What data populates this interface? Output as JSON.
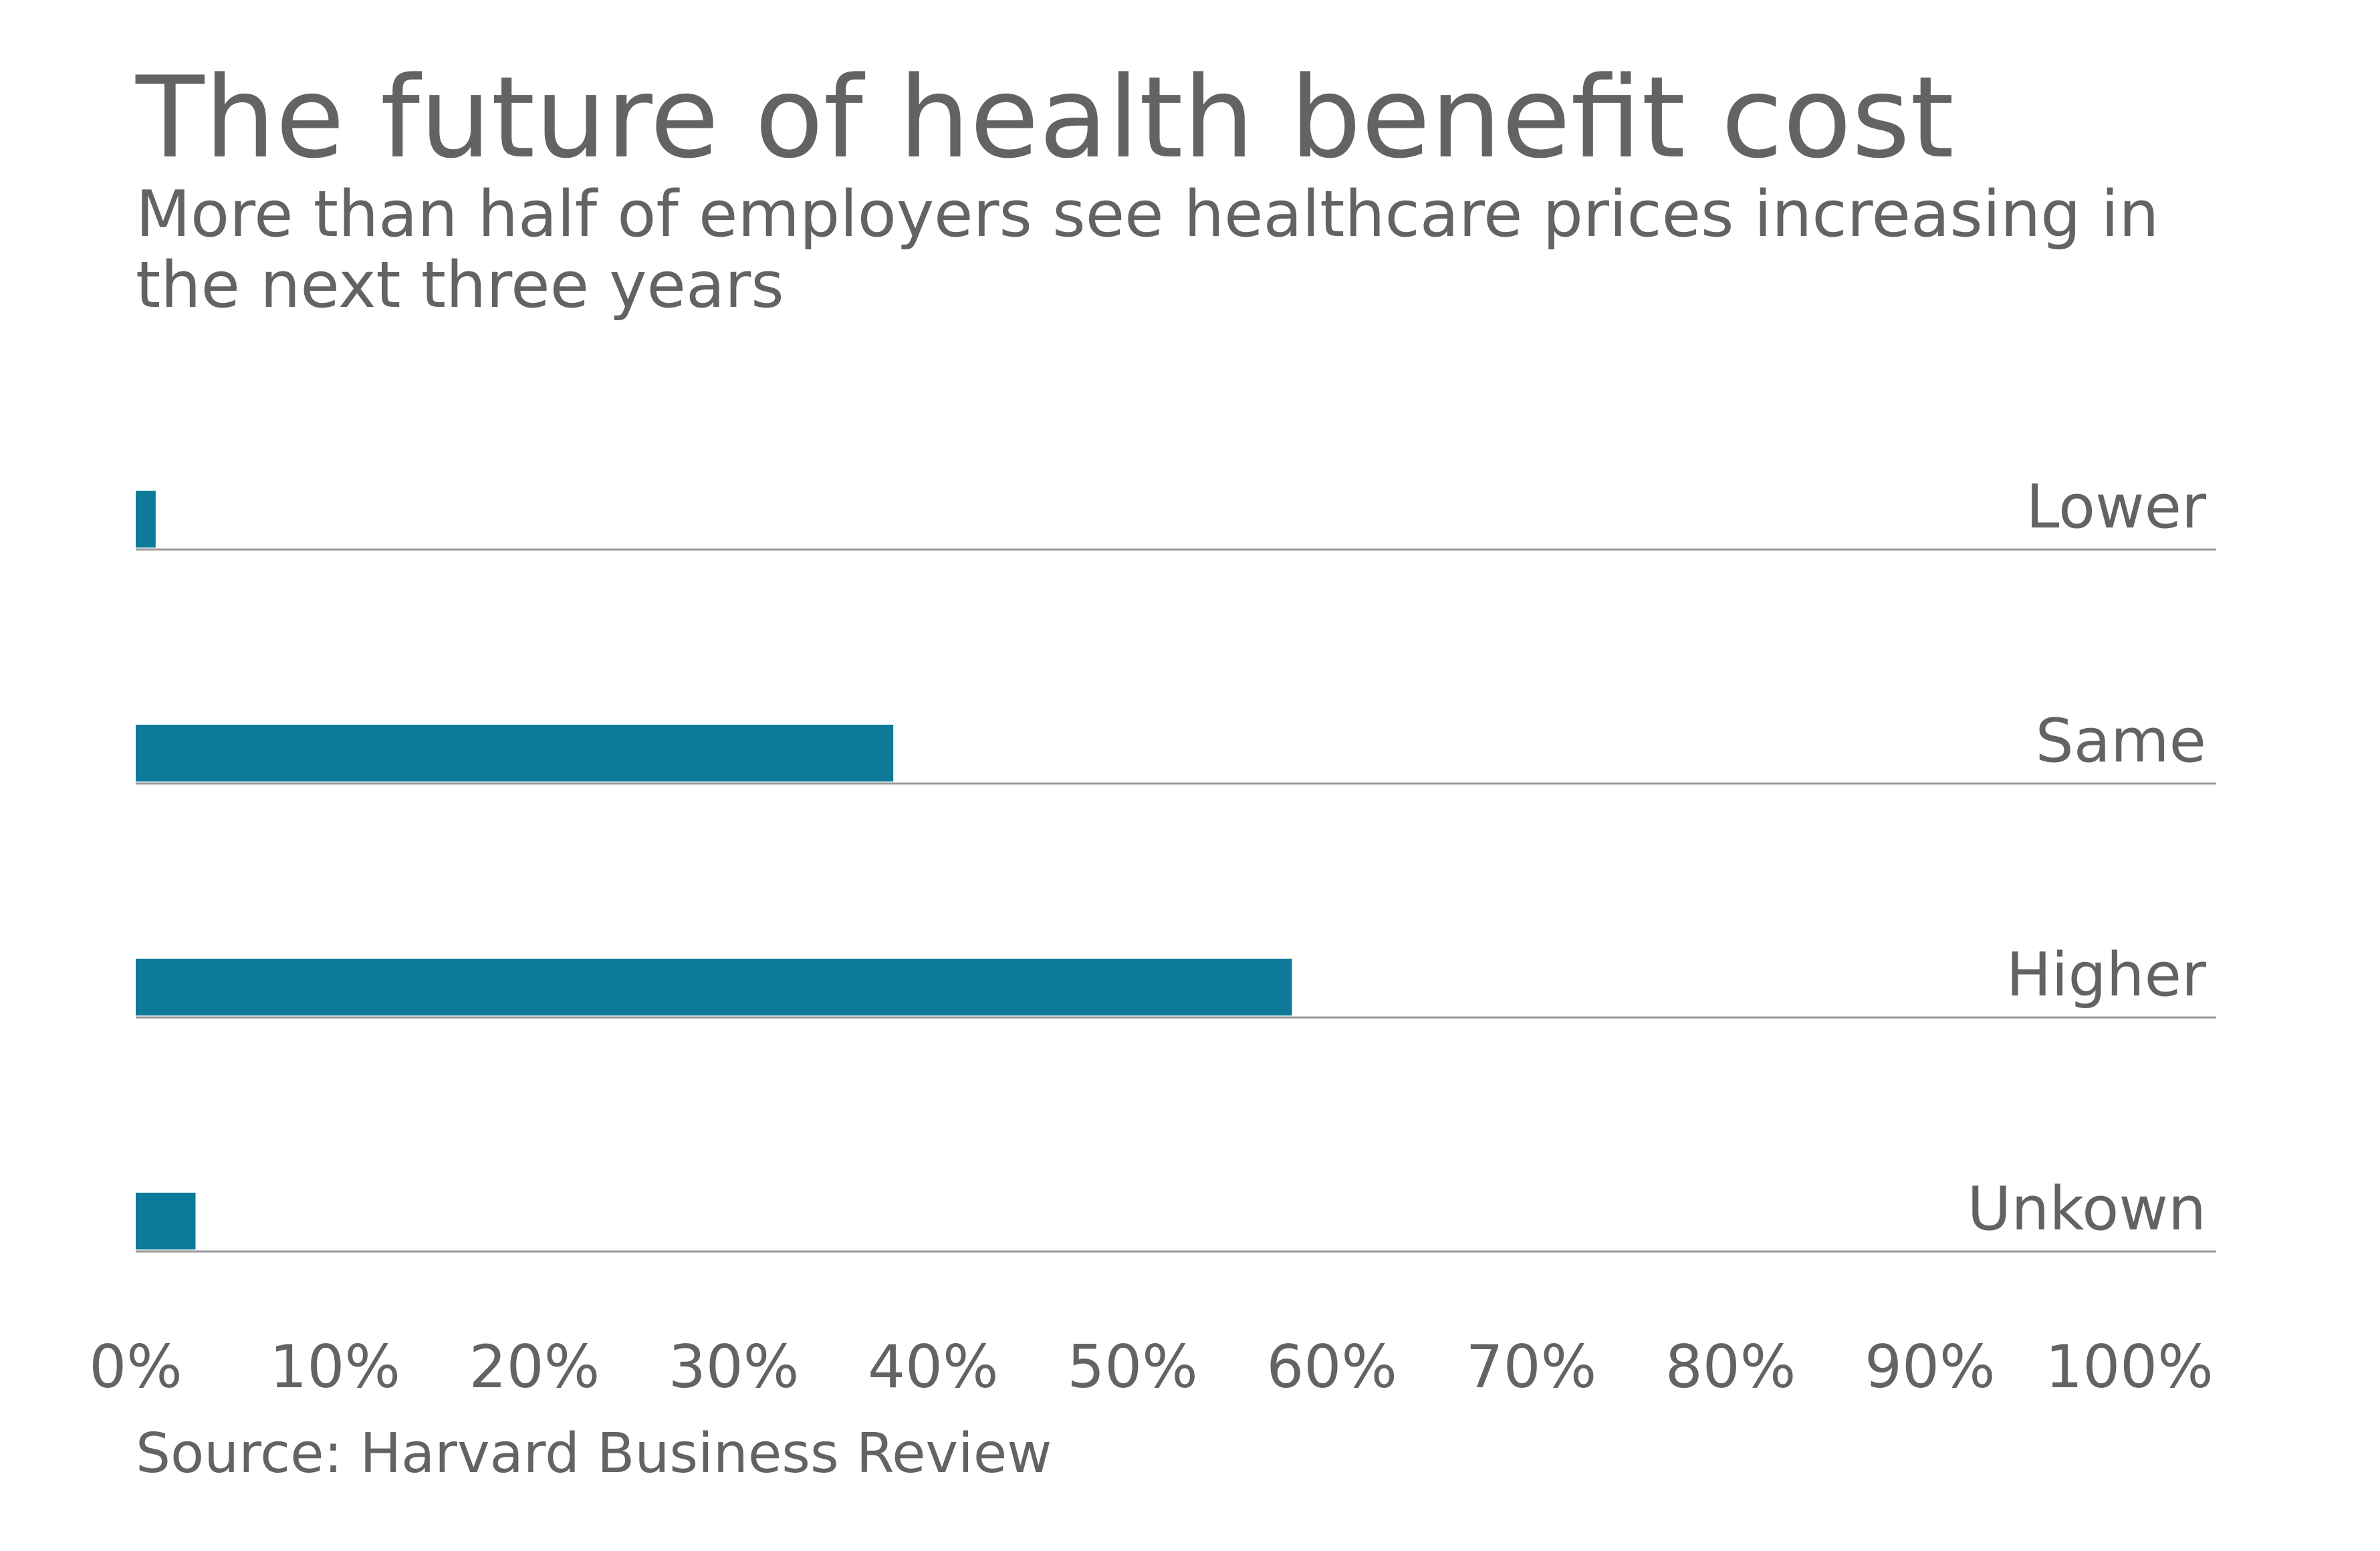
{
  "title": "The future of health benefit cost",
  "subtitle": "More than half of employers see healthcare prices increasing in the next three years",
  "source": "Source: Harvard Business Review",
  "chart_data": {
    "type": "bar",
    "orientation": "horizontal",
    "categories": [
      "Lower",
      "Same",
      "Higher",
      "Unkown"
    ],
    "values": [
      1,
      38,
      58,
      3
    ],
    "xlim": [
      0,
      100
    ],
    "x_ticks": [
      "0%",
      "10%",
      "20%",
      "30%",
      "40%",
      "50%",
      "60%",
      "70%",
      "80%",
      "90%",
      "100%"
    ],
    "xlabel": "",
    "ylabel": "",
    "grid": false,
    "bar_color": "#0d7a99",
    "baseline_color": "#999999",
    "text_color": "#636363"
  }
}
